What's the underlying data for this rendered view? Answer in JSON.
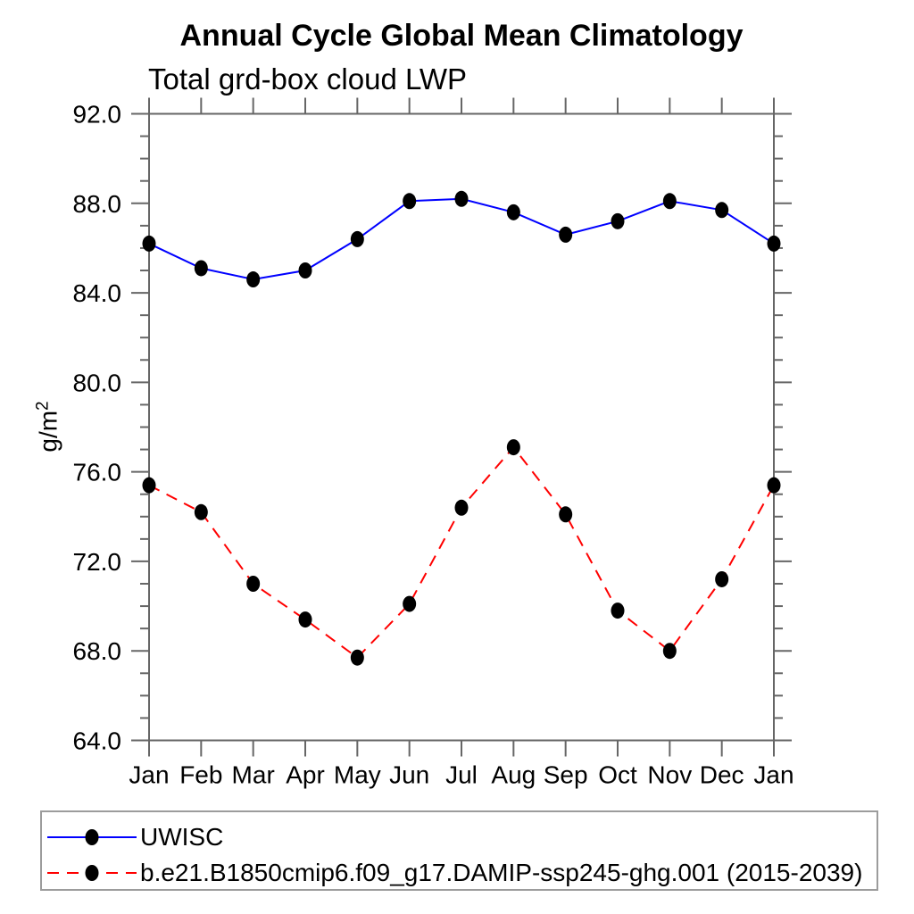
{
  "chart_data": {
    "type": "line",
    "title": "Annual Cycle Global Mean Climatology",
    "subtitle": "Total grd-box cloud LWP",
    "ylabel": "g/m²",
    "ylabel_base": "g/m",
    "ylabel_exponent": "2",
    "ylim": [
      64.0,
      92.0
    ],
    "y_major_step": 4,
    "y_minor_step": 1,
    "y_tick_labels": [
      "92.0",
      "88.0",
      "84.0",
      "80.0",
      "76.0",
      "72.0",
      "68.0",
      "64.0"
    ],
    "categories": [
      "Jan",
      "Feb",
      "Mar",
      "Apr",
      "May",
      "Jun",
      "Jul",
      "Aug",
      "Sep",
      "Oct",
      "Nov",
      "Dec",
      "Jan"
    ],
    "grid": false,
    "legend_position": "bottom",
    "series": [
      {
        "name": "UWISC",
        "color": "#0000ff",
        "line_style": "solid",
        "marker": "filled-circle",
        "marker_color": "#000000",
        "values": [
          86.2,
          85.1,
          84.6,
          85.0,
          86.4,
          88.1,
          88.2,
          87.6,
          86.6,
          87.2,
          88.1,
          87.7,
          86.2
        ]
      },
      {
        "name": "b.e21.B1850cmip6.f09_g17.DAMIP-ssp245-ghg.001 (2015-2039)",
        "color": "#ff0000",
        "line_style": "dashed",
        "marker": "filled-circle",
        "marker_color": "#000000",
        "values": [
          75.4,
          74.2,
          71.0,
          69.4,
          67.7,
          70.1,
          74.4,
          77.1,
          74.1,
          69.8,
          68.0,
          71.2,
          75.4
        ]
      }
    ]
  },
  "colors": {
    "axis": "#666666",
    "text": "#000000",
    "legend_border": "#9c9c9c",
    "background": "#ffffff"
  }
}
